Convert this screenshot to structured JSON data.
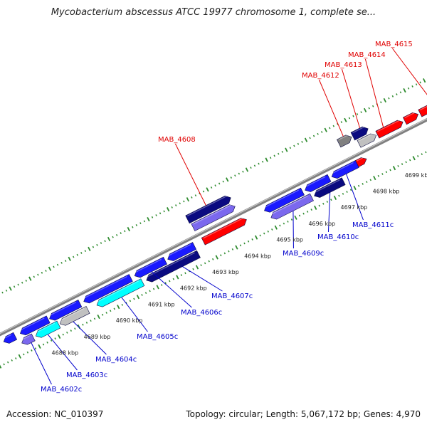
{
  "title": "Mycobacterium abscessus ATCC 19977 chromosome 1, complete se...",
  "footer": {
    "accession": "Accession: NC_010397",
    "stats": "Topology: circular; Length: 5,067,172 bp; Genes: 4,970"
  },
  "colors": {
    "forward_label": "#e00000",
    "reverse_label": "#0000cc",
    "backbone": "#808080",
    "tick": "#2e8b2e",
    "gene_red": "#ff0000",
    "gene_blue": "#1a1aff",
    "gene_navy": "#0a0a80",
    "gene_lavender": "#7b68ee",
    "gene_cyan": "#00ffff",
    "gene_grey": "#808080",
    "gene_silver": "#c0c0c0"
  },
  "kbp_labels": [
    "4688 kbp",
    "4689 kbp",
    "4690 kbp",
    "4691 kbp",
    "4692 kbp",
    "4693 kbp",
    "4694 kbp",
    "4695 kbp",
    "4696 kbp",
    "4697 kbp",
    "4698 kbp",
    "4699 kbp"
  ],
  "gene_labels": [
    {
      "text": "MAB_4602c",
      "strand": "reverse"
    },
    {
      "text": "MAB_4603c",
      "strand": "reverse"
    },
    {
      "text": "MAB_4604c",
      "strand": "reverse"
    },
    {
      "text": "MAB_4605c",
      "strand": "reverse"
    },
    {
      "text": "MAB_4606c",
      "strand": "reverse"
    },
    {
      "text": "MAB_4607c",
      "strand": "reverse"
    },
    {
      "text": "MAB_4608",
      "strand": "forward"
    },
    {
      "text": "MAB_4609c",
      "strand": "reverse"
    },
    {
      "text": "MAB_4610c",
      "strand": "reverse"
    },
    {
      "text": "MAB_4611c",
      "strand": "reverse"
    },
    {
      "text": "MAB_4612",
      "strand": "forward"
    },
    {
      "text": "MAB_4613",
      "strand": "forward"
    },
    {
      "text": "MAB_4614",
      "strand": "forward"
    },
    {
      "text": "MAB_4615",
      "strand": "forward"
    }
  ]
}
